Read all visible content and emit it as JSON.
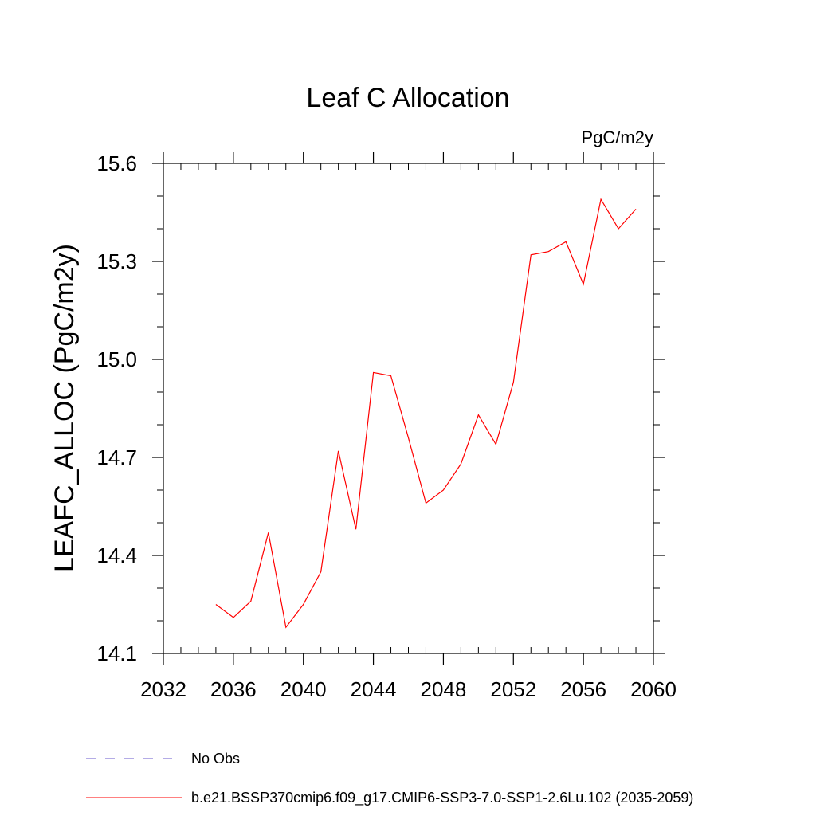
{
  "chart_data": {
    "type": "line",
    "title": "Leaf C Allocation",
    "units_label": "PgC/m2y",
    "xlabel": "",
    "ylabel": "LEAFC_ALLOC  (PgC/m2y)",
    "xlim": [
      2032,
      2060
    ],
    "ylim": [
      14.1,
      15.6
    ],
    "x_ticks": [
      2032,
      2036,
      2040,
      2044,
      2048,
      2052,
      2056,
      2060
    ],
    "x_tick_labels": [
      "2032",
      "2036",
      "2040",
      "2044",
      "2048",
      "2052",
      "2056",
      "2060"
    ],
    "y_ticks": [
      14.1,
      14.4,
      14.7,
      15.0,
      15.3,
      15.6
    ],
    "y_tick_labels": [
      "14.1",
      "14.4",
      "14.7",
      "15.0",
      "15.3",
      "15.6"
    ],
    "x_minor_step": 1,
    "y_minor_step": 0.1,
    "grid": false,
    "series": [
      {
        "name": "b.e21.BSSP370cmip6.f09_g17.CMIP6-SSP3-7.0-SSP1-2.6Lu.102 (2035-2059)",
        "color": "#ff0000",
        "dash": "solid",
        "x": [
          2035,
          2036,
          2037,
          2038,
          2039,
          2040,
          2041,
          2042,
          2043,
          2044,
          2045,
          2046,
          2047,
          2048,
          2049,
          2050,
          2051,
          2052,
          2053,
          2054,
          2055,
          2056,
          2057,
          2058,
          2059
        ],
        "values": [
          14.25,
          14.21,
          14.26,
          14.47,
          14.18,
          14.25,
          14.35,
          14.72,
          14.48,
          14.96,
          14.95,
          14.76,
          14.56,
          14.6,
          14.68,
          14.83,
          14.74,
          14.93,
          15.32,
          15.33,
          15.36,
          15.23,
          15.49,
          15.4,
          15.46
        ]
      }
    ],
    "legend": {
      "placement": "bottom-left",
      "entries": [
        {
          "label": "No Obs",
          "color": "#6a5acd",
          "dash": "dashed"
        },
        {
          "label": "b.e21.BSSP370cmip6.f09_g17.CMIP6-SSP3-7.0-SSP1-2.6Lu.102 (2035-2059)",
          "color": "#ff0000",
          "dash": "solid"
        }
      ]
    }
  }
}
